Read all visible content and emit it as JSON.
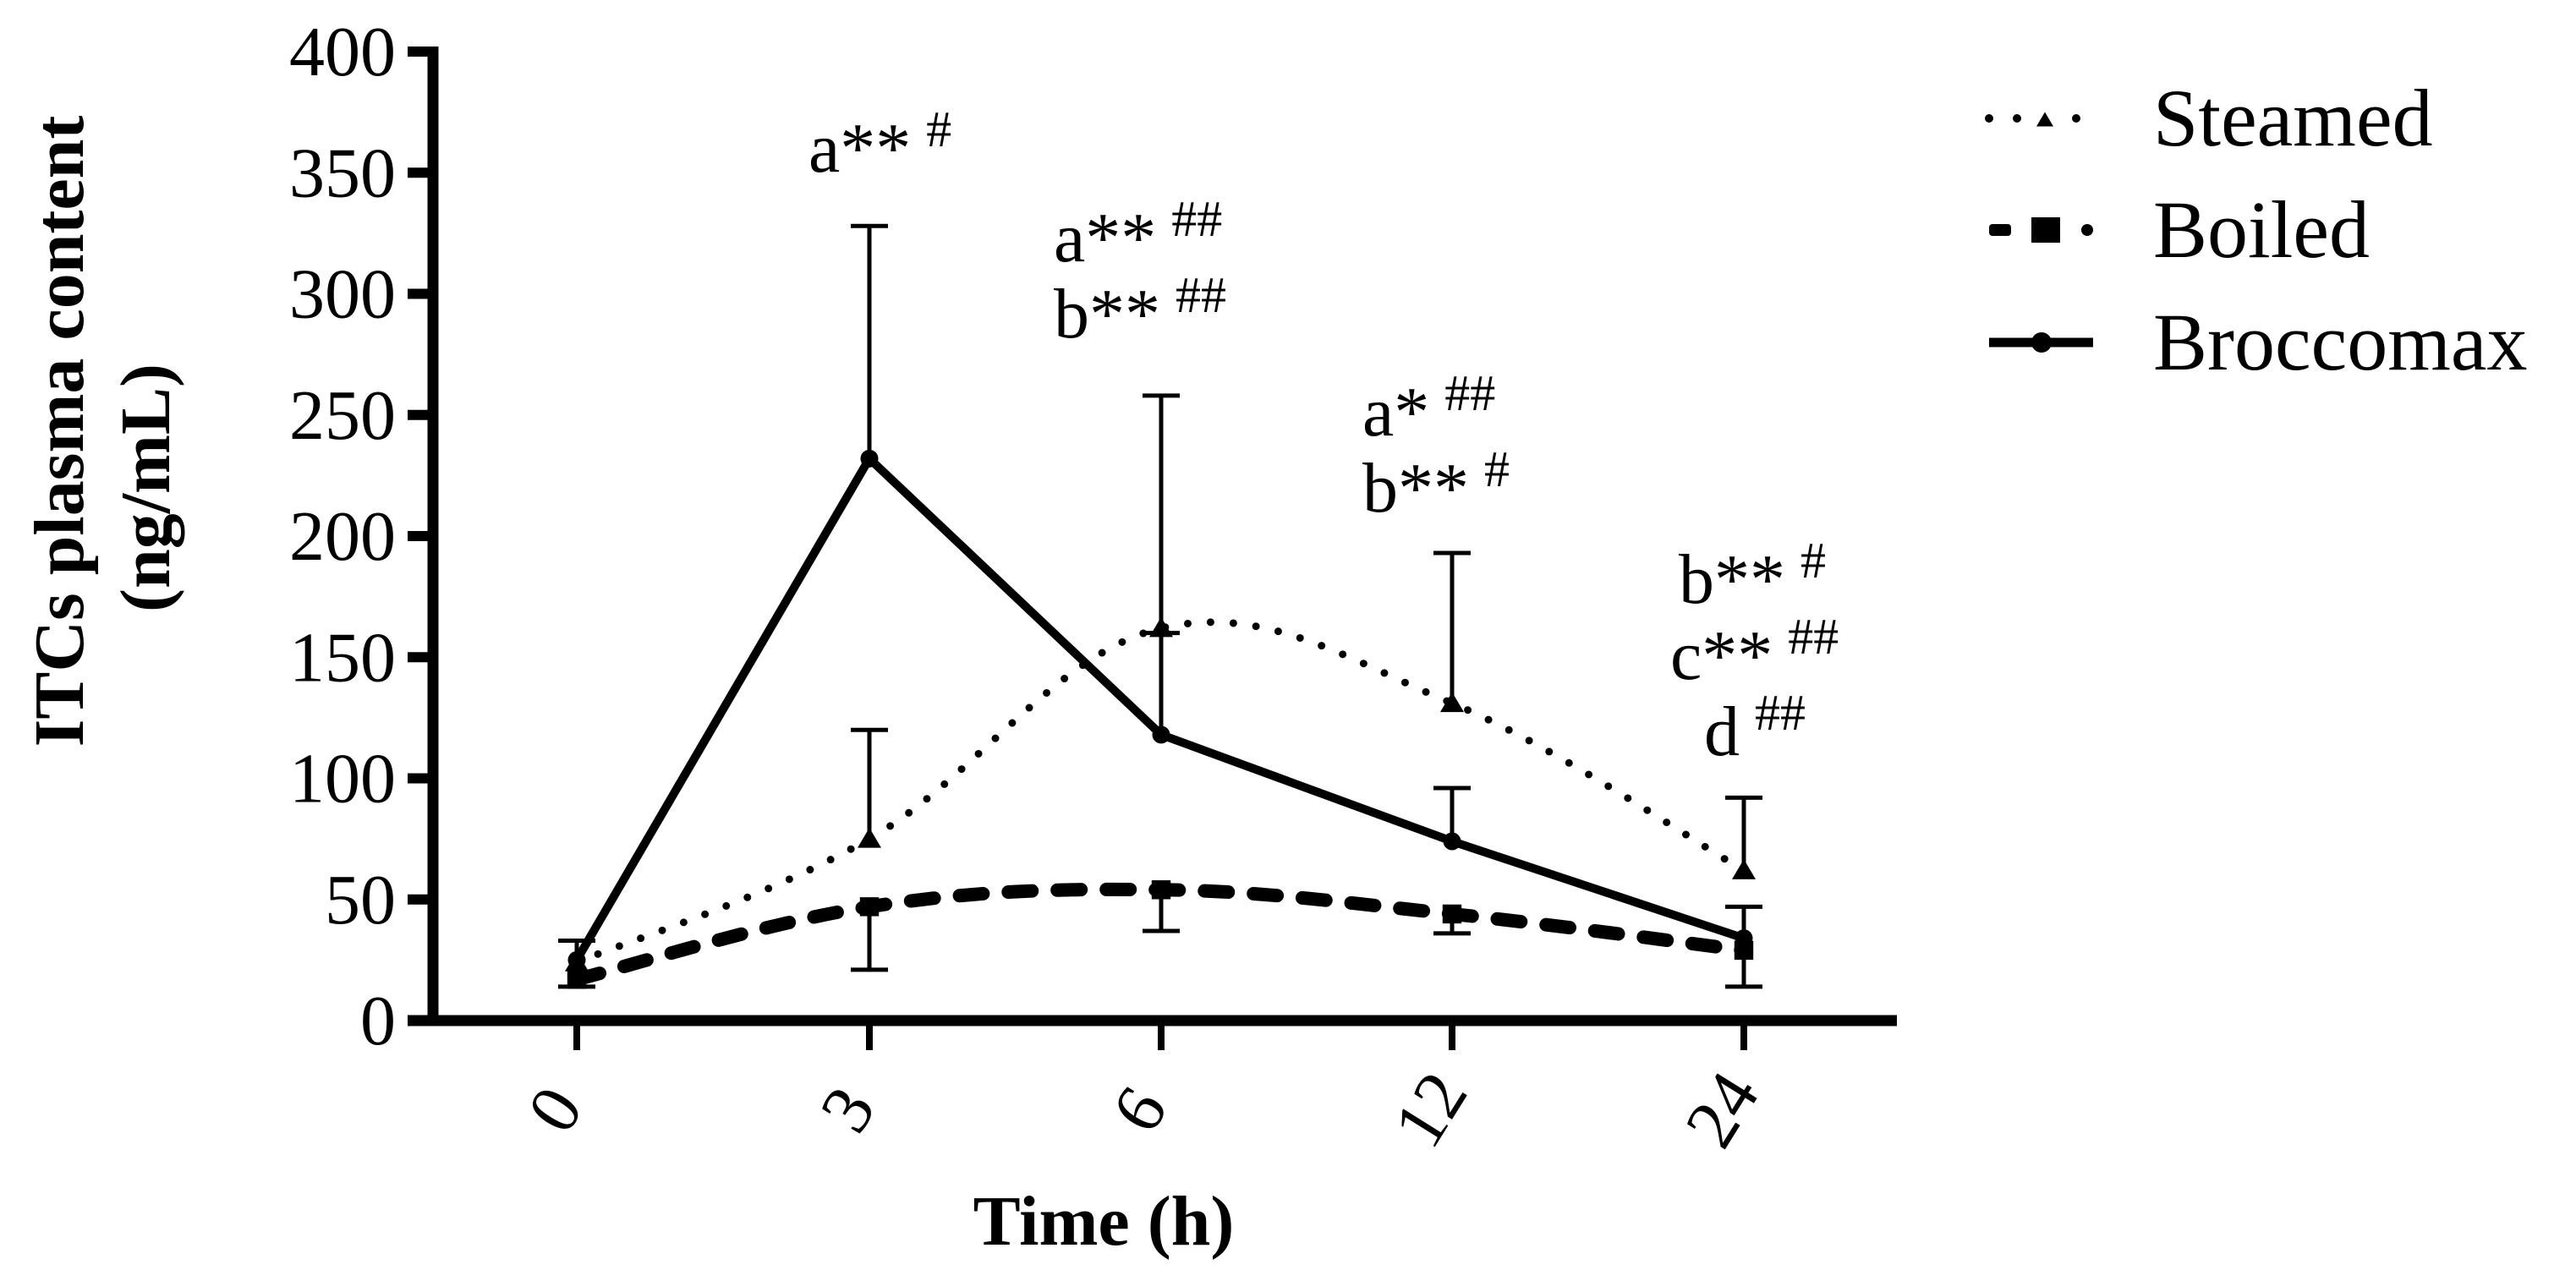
{
  "chart_data": {
    "type": "line",
    "title": "",
    "xlabel": "Time (h)",
    "ylabel_line1": "ITCs plasma content",
    "ylabel_line2": "(ng/mL)",
    "ylabel": "ITCs plasma content (ng/mL)",
    "categories": [
      "0",
      "3",
      "6",
      "12",
      "24"
    ],
    "ylim": [
      0,
      400
    ],
    "yticks": [
      0,
      50,
      100,
      150,
      200,
      250,
      300,
      350,
      400
    ],
    "grid": false,
    "legend_position": "top-right, outside plot",
    "series": [
      {
        "name": "Steamed",
        "line_style": "dotted",
        "marker": "triangle",
        "values": [
          24,
          75,
          162,
          131,
          62
        ],
        "error_upper": [
          33,
          120,
          258,
          193,
          92
        ]
      },
      {
        "name": "Boiled",
        "line_style": "dashed",
        "marker": "square",
        "values": [
          17,
          47,
          54,
          44,
          29
        ],
        "error_lower": [
          14,
          21,
          37,
          36,
          14
        ]
      },
      {
        "name": "Broccomax",
        "line_style": "solid",
        "marker": "circle",
        "values": [
          25,
          232,
          118,
          74,
          34
        ],
        "error_upper": [
          33,
          328,
          160,
          96,
          47
        ]
      }
    ],
    "annotations": [
      {
        "x_index": 1,
        "lines": [
          {
            "letter": "a**",
            "sup": "#"
          }
        ]
      },
      {
        "x_index": 2,
        "lines": [
          {
            "letter": "a**",
            "sup": "##"
          },
          {
            "letter": "b**",
            "sup": "##"
          }
        ]
      },
      {
        "x_index": 3,
        "lines": [
          {
            "letter": "a*",
            "sup": "##"
          },
          {
            "letter": "b**",
            "sup": "#"
          }
        ]
      },
      {
        "x_index": 4,
        "lines": [
          {
            "letter": "b**",
            "sup": "#"
          },
          {
            "letter": "c**",
            "sup": "##"
          },
          {
            "letter": "d",
            "sup": "##"
          }
        ]
      }
    ]
  },
  "legend": {
    "items": [
      {
        "label": "Steamed",
        "icon": "dotted-line-triangle-icon"
      },
      {
        "label": "Boiled",
        "icon": "dashed-line-square-icon"
      },
      {
        "label": "Broccomax",
        "icon": "solid-line-circle-icon"
      }
    ]
  },
  "colors": {
    "ink": "#000000",
    "background": "#ffffff"
  }
}
